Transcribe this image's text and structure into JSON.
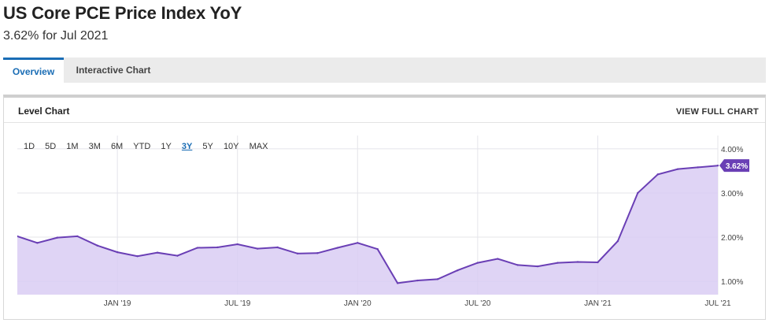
{
  "header": {
    "title": "US Core PCE Price Index YoY",
    "subtitle": "3.62% for Jul 2021"
  },
  "tabs": [
    {
      "label": "Overview",
      "active": true
    },
    {
      "label": "Interactive Chart",
      "active": false
    }
  ],
  "panel": {
    "title": "Level Chart",
    "view_full_label": "VIEW FULL CHART"
  },
  "ranges": [
    "1D",
    "5D",
    "1M",
    "3M",
    "6M",
    "YTD",
    "1Y",
    "3Y",
    "5Y",
    "10Y",
    "MAX"
  ],
  "active_range": "3Y",
  "chart_data": {
    "type": "area",
    "x": [
      "2018-08",
      "2018-09",
      "2018-10",
      "2018-11",
      "2018-12",
      "2019-01",
      "2019-02",
      "2019-03",
      "2019-04",
      "2019-05",
      "2019-06",
      "2019-07",
      "2019-08",
      "2019-09",
      "2019-10",
      "2019-11",
      "2019-12",
      "2020-01",
      "2020-02",
      "2020-03",
      "2020-04",
      "2020-05",
      "2020-06",
      "2020-07",
      "2020-08",
      "2020-09",
      "2020-10",
      "2020-11",
      "2020-12",
      "2021-01",
      "2021-02",
      "2021-03",
      "2021-04",
      "2021-05",
      "2021-06",
      "2021-07"
    ],
    "series": [
      {
        "values": [
          2.02,
          1.87,
          1.99,
          2.02,
          1.81,
          1.66,
          1.57,
          1.65,
          1.58,
          1.76,
          1.77,
          1.84,
          1.74,
          1.77,
          1.63,
          1.64,
          1.76,
          1.87,
          1.73,
          0.96,
          1.02,
          1.05,
          1.25,
          1.42,
          1.51,
          1.37,
          1.34,
          1.42,
          1.44,
          1.43,
          1.91,
          3.0,
          3.42,
          3.54,
          3.58,
          3.62
        ]
      }
    ],
    "x_tick_labels": [
      "JAN '19",
      "JUL '19",
      "JAN '20",
      "JUL '20",
      "JAN '21",
      "JUL '21"
    ],
    "x_tick_positions": [
      "2019-01",
      "2019-07",
      "2020-01",
      "2020-07",
      "2021-01",
      "2021-07"
    ],
    "y_tick_labels": [
      "1.00%",
      "2.00%",
      "3.00%",
      "4.00%"
    ],
    "y_ticks": [
      1.0,
      2.0,
      3.0,
      4.0
    ],
    "ylim": [
      0.7,
      4.3
    ],
    "last_value_label": "3.62%",
    "grid": true,
    "colors": {
      "line": "#6a3fb5",
      "fill": "#d9cdf3",
      "badge": "#6a3fb5",
      "grid": "#e4e4ea"
    }
  }
}
